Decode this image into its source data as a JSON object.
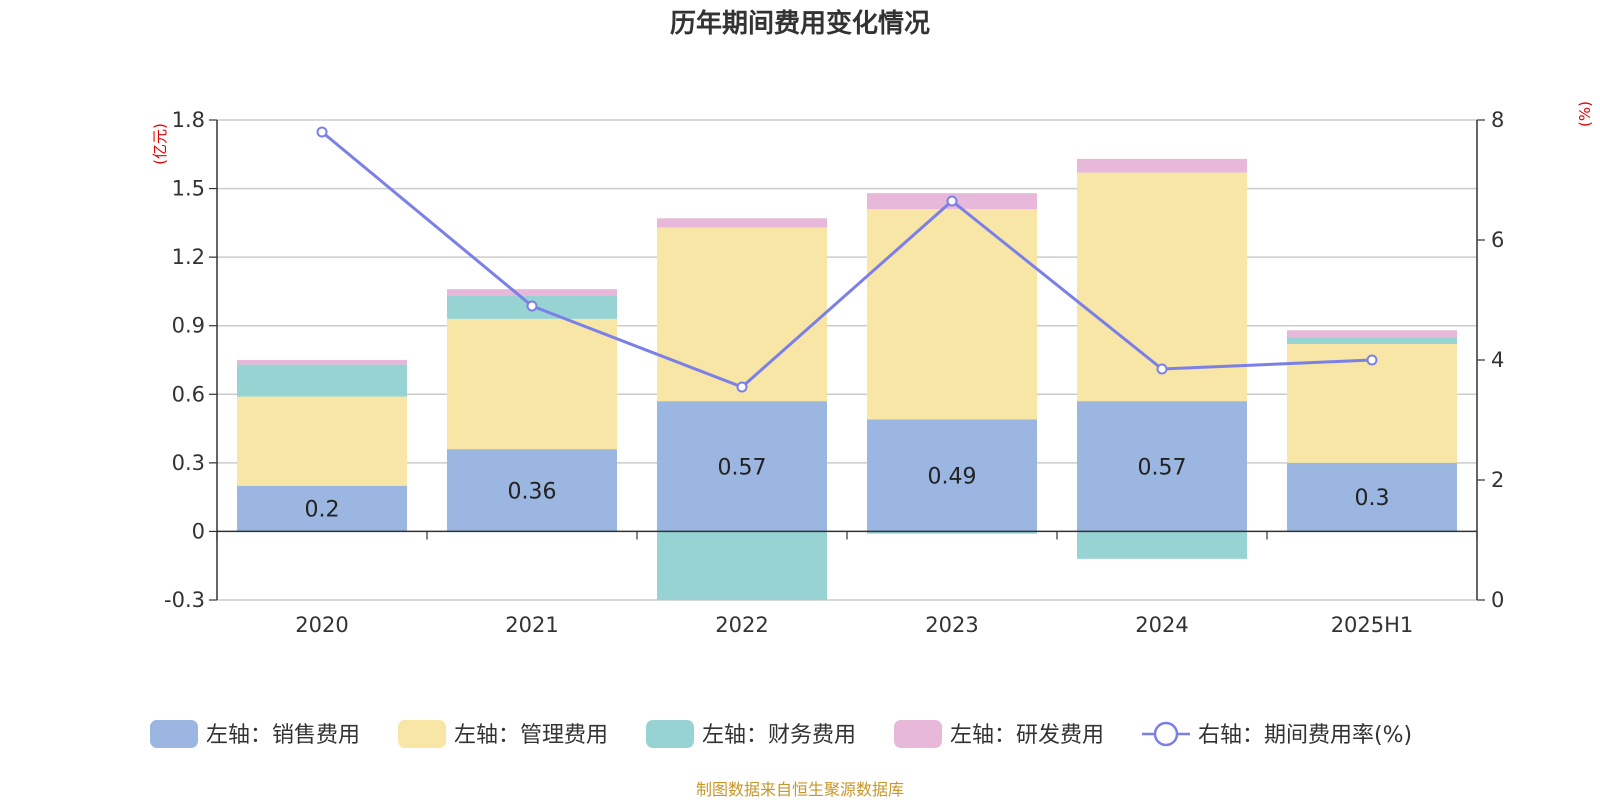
{
  "chart_data": {
    "type": "bar",
    "title": "历年期间费用变化情况",
    "categories": [
      "2020",
      "2021",
      "2022",
      "2023",
      "2024",
      "2025H1"
    ],
    "left_axis": {
      "unit": "(亿元)",
      "ylim": [
        -0.3,
        1.8
      ],
      "ticks": [
        "-0.3",
        "0",
        "0.3",
        "0.6",
        "0.9",
        "1.2",
        "1.5",
        "1.8"
      ]
    },
    "right_axis": {
      "unit": "(%)",
      "ylim": [
        0,
        8
      ],
      "ticks": [
        "0",
        "2",
        "4",
        "6",
        "8"
      ]
    },
    "stacked": true,
    "series": [
      {
        "name": "左轴：销售费用",
        "axis": "left",
        "color": "#9bb6e0",
        "values": [
          0.2,
          0.36,
          0.57,
          0.49,
          0.57,
          0.3
        ],
        "labels": [
          "0.2",
          "0.36",
          "0.57",
          "0.49",
          "0.57",
          "0.3"
        ]
      },
      {
        "name": "左轴：管理费用",
        "axis": "left",
        "color": "#f7e6a6",
        "values": [
          0.39,
          0.57,
          0.76,
          0.92,
          1.0,
          0.52
        ]
      },
      {
        "name": "左轴：财务费用",
        "axis": "left",
        "color": "#97d3d3",
        "values": [
          0.14,
          0.1,
          -0.3,
          -0.01,
          -0.12,
          0.03
        ]
      },
      {
        "name": "左轴：研发费用",
        "axis": "left",
        "color": "#e8b8da",
        "values": [
          0.02,
          0.03,
          0.04,
          0.07,
          0.06,
          0.03
        ]
      },
      {
        "name": "右轴：期间费用率(%)",
        "axis": "right",
        "type": "line",
        "color": "#7b7fe8",
        "values": [
          7.8,
          4.9,
          3.55,
          6.65,
          3.85,
          4.0
        ]
      }
    ],
    "grid": true,
    "legend_position": "bottom"
  },
  "source": "制图数据来自恒生聚源数据库"
}
